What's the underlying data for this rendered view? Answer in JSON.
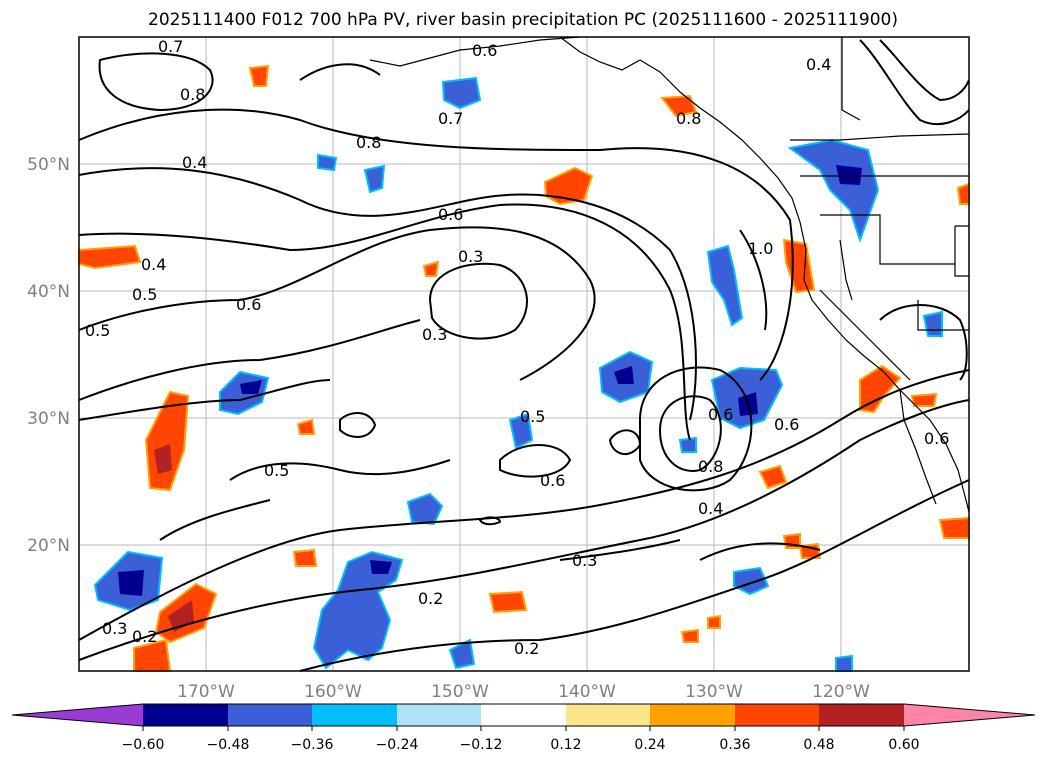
{
  "title": "2025111400 F012 700 hPa PV, river basin precipitation PC (2025111600 - 2025111900)",
  "lat_labels": [
    "50°N",
    "40°N",
    "30°N",
    "20°N"
  ],
  "lon_labels": [
    "170°W",
    "160°W",
    "150°W",
    "140°W",
    "130°W",
    "120°W"
  ],
  "contour_labels": [
    "0.7",
    "0.8",
    "0.6",
    "0.7",
    "0.8",
    "0.4",
    "0.4",
    "0.5",
    "0.5",
    "0.6",
    "0.6",
    "0.3",
    "0.3",
    "0.8",
    "0.4",
    "0.5",
    "0.6",
    "1.0",
    "0.5",
    "0.6",
    "0.8",
    "0.6",
    "0.4",
    "0.3",
    "0.2",
    "0.3",
    "0.2",
    "0.2",
    "0.6"
  ],
  "colorbar": {
    "tick_labels": [
      "−0.60",
      "−0.48",
      "−0.36",
      "−0.24",
      "−0.12",
      "0.12",
      "0.24",
      "0.36",
      "0.48",
      "0.60"
    ],
    "colors": [
      "#9a3bd4",
      "#000090",
      "#3b5fd6",
      "#00bfff",
      "#aee3f7",
      "#ffffff",
      "#fbe68c",
      "#ffa200",
      "#ff4500",
      "#b22222",
      "#ff85a8"
    ]
  },
  "legend_colors": {
    "strong_negative": "#000090",
    "negative": "#3b5fd6",
    "weak_negative": "#00bfff",
    "weak_positive": "#ffa200",
    "positive": "#ff4500",
    "strong_positive": "#b22222"
  }
}
